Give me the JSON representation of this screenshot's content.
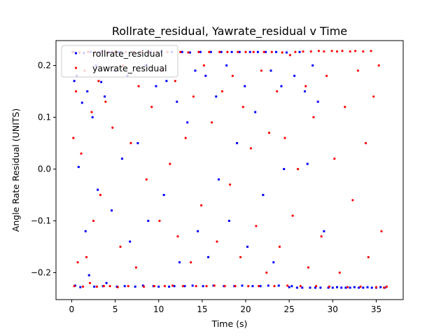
{
  "chart_data": {
    "type": "scatter",
    "title": "Rollrate_residual, Yawrate_residual v Time",
    "xlabel": "Time (s)",
    "ylabel": "Angle Rate Residual (UNITS)",
    "xlim": [
      -1.8,
      38.1
    ],
    "ylim": [
      -0.252,
      0.248
    ],
    "xticks": [
      0,
      5,
      10,
      15,
      20,
      25,
      30,
      35
    ],
    "yticks": [
      -0.2,
      -0.1,
      0.0,
      0.1,
      0.2
    ],
    "xtick_labels": [
      "0",
      "5",
      "10",
      "15",
      "20",
      "25",
      "30",
      "35"
    ],
    "ytick_labels": [
      "−0.2",
      "−0.1",
      "0.0",
      "0.1",
      "0.2"
    ],
    "legend_position": "upper-left",
    "series": [
      {
        "name": "rollrate_residual",
        "color": "#0000ff",
        "marker": "square",
        "points": [
          [
            0.2,
            0.226
          ],
          [
            0.3,
            0.17
          ],
          [
            0.4,
            -0.225
          ],
          [
            0.6,
            0.18
          ],
          [
            0.8,
            0.004
          ],
          [
            1.0,
            -0.228
          ],
          [
            1.2,
            0.128
          ],
          [
            1.4,
            0.224
          ],
          [
            1.6,
            -0.12
          ],
          [
            1.8,
            0.15
          ],
          [
            2.0,
            -0.205
          ],
          [
            2.2,
            0.226
          ],
          [
            2.4,
            0.1
          ],
          [
            2.6,
            -0.227
          ],
          [
            2.8,
            0.2
          ],
          [
            3.0,
            -0.04
          ],
          [
            3.2,
            0.226
          ],
          [
            3.4,
            0.168
          ],
          [
            3.6,
            -0.226
          ],
          [
            3.8,
            0.14
          ],
          [
            4.0,
            -0.22
          ],
          [
            4.3,
            0.225
          ],
          [
            4.6,
            -0.08
          ],
          [
            4.9,
            0.19
          ],
          [
            5.2,
            -0.227
          ],
          [
            5.5,
            0.226
          ],
          [
            5.8,
            0.02
          ],
          [
            6.1,
            -0.226
          ],
          [
            6.4,
            0.18
          ],
          [
            6.7,
            -0.14
          ],
          [
            7.0,
            0.226
          ],
          [
            7.3,
            -0.227
          ],
          [
            7.6,
            0.05
          ],
          [
            7.9,
            0.225
          ],
          [
            8.2,
            -0.225
          ],
          [
            8.5,
            0.2
          ],
          [
            8.8,
            -0.1
          ],
          [
            9.1,
            0.226
          ],
          [
            9.4,
            -0.226
          ],
          [
            9.7,
            0.16
          ],
          [
            10.0,
            -0.227
          ],
          [
            10.3,
            0.226
          ],
          [
            10.6,
            -0.05
          ],
          [
            10.9,
            0.17
          ],
          [
            11.2,
            -0.227
          ],
          [
            11.5,
            0.226
          ],
          [
            11.8,
            -0.226
          ],
          [
            12.1,
            0.13
          ],
          [
            12.4,
            -0.18
          ],
          [
            12.7,
            0.226
          ],
          [
            13.0,
            -0.226
          ],
          [
            13.3,
            0.09
          ],
          [
            13.6,
            0.225
          ],
          [
            13.9,
            -0.225
          ],
          [
            14.2,
            0.19
          ],
          [
            14.5,
            -0.12
          ],
          [
            14.8,
            0.226
          ],
          [
            15.1,
            -0.226
          ],
          [
            15.4,
            0.18
          ],
          [
            15.7,
            -0.17
          ],
          [
            16.0,
            0.226
          ],
          [
            16.3,
            -0.225
          ],
          [
            16.6,
            0.14
          ],
          [
            16.9,
            -0.02
          ],
          [
            17.2,
            0.226
          ],
          [
            17.5,
            -0.226
          ],
          [
            17.8,
            0.2
          ],
          [
            18.1,
            -0.1
          ],
          [
            18.4,
            0.226
          ],
          [
            18.7,
            -0.226
          ],
          [
            19.0,
            0.05
          ],
          [
            19.3,
            0.226
          ],
          [
            19.6,
            -0.225
          ],
          [
            19.9,
            0.16
          ],
          [
            20.2,
            -0.15
          ],
          [
            20.5,
            0.226
          ],
          [
            20.8,
            -0.226
          ],
          [
            21.1,
            0.11
          ],
          [
            21.4,
            0.226
          ],
          [
            21.7,
            -0.226
          ],
          [
            22.0,
            -0.05
          ],
          [
            22.3,
            0.226
          ],
          [
            22.6,
            -0.225
          ],
          [
            22.9,
            0.19
          ],
          [
            23.2,
            -0.18
          ],
          [
            23.5,
            0.226
          ],
          [
            23.8,
            -0.225
          ],
          [
            24.1,
            0.16
          ],
          [
            24.4,
            0.0
          ],
          [
            24.7,
            0.225
          ],
          [
            25.0,
            -0.228
          ],
          [
            25.3,
            -0.226
          ],
          [
            25.6,
            0.18
          ],
          [
            25.9,
            -0.229
          ],
          [
            26.2,
            0.226
          ],
          [
            26.5,
            -0.229
          ],
          [
            26.8,
            0.15
          ],
          [
            27.1,
            0.01
          ],
          [
            27.4,
            -0.229
          ],
          [
            27.7,
            0.2
          ],
          [
            28.0,
            -0.229
          ],
          [
            28.3,
            0.13
          ],
          [
            28.6,
            -0.229
          ],
          [
            29.0,
            -0.12
          ],
          [
            29.5,
            -0.229
          ],
          [
            30.0,
            -0.229
          ],
          [
            30.5,
            -0.228
          ],
          [
            31.0,
            -0.229
          ],
          [
            31.5,
            -0.229
          ],
          [
            32.0,
            -0.229
          ],
          [
            32.5,
            -0.228
          ],
          [
            33.0,
            -0.229
          ],
          [
            33.5,
            -0.229
          ],
          [
            34.0,
            -0.228
          ],
          [
            34.5,
            -0.229
          ],
          [
            35.0,
            -0.229
          ],
          [
            35.5,
            -0.228
          ],
          [
            36.0,
            -0.229
          ]
        ]
      },
      {
        "name": "yawrate_residual",
        "color": "#ff0000",
        "marker": "dot",
        "points": [
          [
            0.1,
            0.226
          ],
          [
            0.2,
            0.06
          ],
          [
            0.3,
            -0.226
          ],
          [
            0.5,
            0.15
          ],
          [
            0.7,
            -0.18
          ],
          [
            0.9,
            0.225
          ],
          [
            1.1,
            0.03
          ],
          [
            1.3,
            -0.227
          ],
          [
            1.5,
            0.19
          ],
          [
            1.7,
            -0.17
          ],
          [
            1.9,
            0.226
          ],
          [
            2.1,
            -0.22
          ],
          [
            2.3,
            0.11
          ],
          [
            2.5,
            -0.1
          ],
          [
            2.7,
            0.226
          ],
          [
            2.9,
            -0.227
          ],
          [
            3.1,
            0.17
          ],
          [
            3.3,
            -0.05
          ],
          [
            3.5,
            0.226
          ],
          [
            3.7,
            -0.226
          ],
          [
            3.9,
            0.13
          ],
          [
            4.1,
            0.225
          ],
          [
            4.4,
            -0.226
          ],
          [
            4.7,
            0.08
          ],
          [
            5.0,
            0.226
          ],
          [
            5.3,
            -0.228
          ],
          [
            5.6,
            -0.15
          ],
          [
            5.9,
            0.2
          ],
          [
            6.2,
            0.226
          ],
          [
            6.5,
            -0.226
          ],
          [
            6.8,
            0.05
          ],
          [
            7.1,
            0.226
          ],
          [
            7.4,
            -0.19
          ],
          [
            7.7,
            0.16
          ],
          [
            8.0,
            0.226
          ],
          [
            8.3,
            -0.227
          ],
          [
            8.6,
            -0.02
          ],
          [
            8.9,
            0.225
          ],
          [
            9.2,
            0.12
          ],
          [
            9.5,
            -0.226
          ],
          [
            9.8,
            0.226
          ],
          [
            10.1,
            -0.1
          ],
          [
            10.4,
            0.19
          ],
          [
            10.7,
            -0.226
          ],
          [
            11.0,
            0.226
          ],
          [
            11.3,
            0.01
          ],
          [
            11.6,
            -0.225
          ],
          [
            11.9,
            0.17
          ],
          [
            12.2,
            -0.13
          ],
          [
            12.5,
            0.226
          ],
          [
            12.8,
            -0.226
          ],
          [
            13.1,
            0.06
          ],
          [
            13.4,
            0.225
          ],
          [
            13.7,
            -0.18
          ],
          [
            14.0,
            0.14
          ],
          [
            14.3,
            -0.226
          ],
          [
            14.6,
            0.226
          ],
          [
            14.9,
            -0.07
          ],
          [
            15.2,
            0.2
          ],
          [
            15.5,
            -0.226
          ],
          [
            15.8,
            0.226
          ],
          [
            16.1,
            0.09
          ],
          [
            16.4,
            -0.225
          ],
          [
            16.7,
            -0.14
          ],
          [
            17.0,
            0.226
          ],
          [
            17.3,
            0.15
          ],
          [
            17.6,
            -0.226
          ],
          [
            17.9,
            0.226
          ],
          [
            18.2,
            -0.03
          ],
          [
            18.5,
            0.18
          ],
          [
            18.8,
            -0.226
          ],
          [
            19.1,
            0.226
          ],
          [
            19.4,
            -0.17
          ],
          [
            19.7,
            0.12
          ],
          [
            20.0,
            0.226
          ],
          [
            20.3,
            -0.226
          ],
          [
            20.6,
            0.04
          ],
          [
            20.9,
            0.226
          ],
          [
            21.2,
            -0.11
          ],
          [
            21.5,
            -0.226
          ],
          [
            21.8,
            0.19
          ],
          [
            22.1,
            0.226
          ],
          [
            22.4,
            -0.2
          ],
          [
            22.7,
            0.07
          ],
          [
            23.0,
            0.226
          ],
          [
            23.3,
            -0.226
          ],
          [
            23.6,
            0.15
          ],
          [
            23.9,
            -0.15
          ],
          [
            24.2,
            0.225
          ],
          [
            24.5,
            0.06
          ],
          [
            24.8,
            -0.225
          ],
          [
            25.1,
            0.22
          ],
          [
            25.4,
            -0.09
          ],
          [
            25.7,
            0.226
          ],
          [
            26.0,
            0.0
          ],
          [
            26.3,
            -0.226
          ],
          [
            26.6,
            0.227
          ],
          [
            26.9,
            0.16
          ],
          [
            27.2,
            -0.19
          ],
          [
            27.5,
            0.227
          ],
          [
            27.8,
            0.1
          ],
          [
            28.1,
            -0.226
          ],
          [
            28.4,
            0.228
          ],
          [
            28.7,
            -0.13
          ],
          [
            29.0,
            0.227
          ],
          [
            29.3,
            0.18
          ],
          [
            29.6,
            -0.227
          ],
          [
            29.9,
            0.228
          ],
          [
            30.2,
            0.02
          ],
          [
            30.5,
            0.227
          ],
          [
            30.8,
            -0.2
          ],
          [
            31.1,
            0.228
          ],
          [
            31.4,
            0.12
          ],
          [
            31.7,
            -0.228
          ],
          [
            32.0,
            0.227
          ],
          [
            32.3,
            -0.06
          ],
          [
            32.6,
            0.228
          ],
          [
            32.9,
            0.19
          ],
          [
            33.2,
            -0.227
          ],
          [
            33.5,
            0.227
          ],
          [
            33.8,
            0.05
          ],
          [
            34.1,
            -0.17
          ],
          [
            34.4,
            0.228
          ],
          [
            34.7,
            0.14
          ],
          [
            35.0,
            -0.228
          ],
          [
            35.3,
            0.2
          ],
          [
            35.6,
            -0.12
          ],
          [
            35.9,
            -0.229
          ],
          [
            36.2,
            -0.227
          ]
        ]
      }
    ]
  }
}
